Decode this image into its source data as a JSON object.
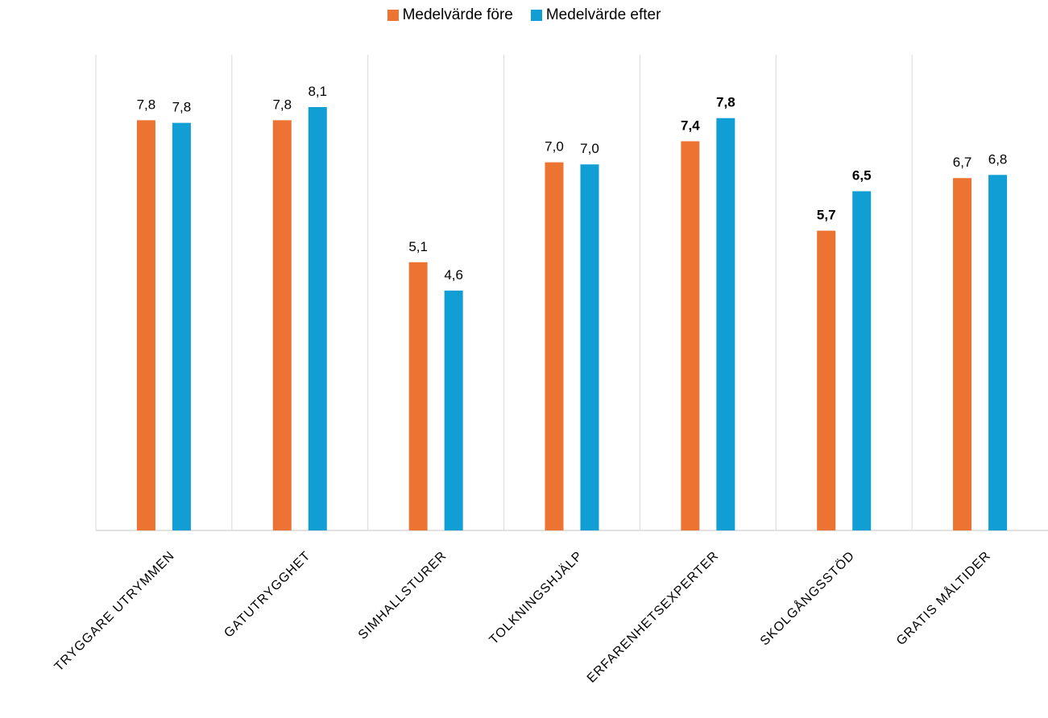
{
  "chart_data": {
    "type": "bar",
    "categories": [
      "TRYGGARE UTRYMMEN",
      "GATUTRYGGHET",
      "SIMHALLSTURER",
      "TOLKNINGSHJÄLP",
      "ERFARENHETSEXPERTER",
      "SKOLGÅNGSSTÖD",
      "GRATIS MÅLTIDER"
    ],
    "series": [
      {
        "name": "Medelvärde före",
        "color": "#ED7332",
        "values": [
          7.8,
          7.8,
          5.1,
          7.0,
          7.4,
          5.7,
          6.7
        ],
        "labels": [
          "7,8",
          "7,8",
          "5,1",
          "7,0",
          "7,4",
          "5,7",
          "6,7"
        ],
        "bold": [
          false,
          false,
          false,
          false,
          true,
          true,
          false
        ]
      },
      {
        "name": "Medelvärde efter",
        "color": "#119ED5",
        "values": [
          7.75,
          8.05,
          4.56,
          6.96,
          7.84,
          6.45,
          6.76
        ],
        "labels": [
          "7,8",
          "8,1",
          "4,6",
          "7,0",
          "7,8",
          "6,5",
          "6,8"
        ],
        "bold": [
          false,
          false,
          false,
          false,
          true,
          true,
          false
        ]
      }
    ],
    "ylim": [
      0,
      9
    ],
    "grid": "vertical-separators",
    "legend": "top-center"
  }
}
